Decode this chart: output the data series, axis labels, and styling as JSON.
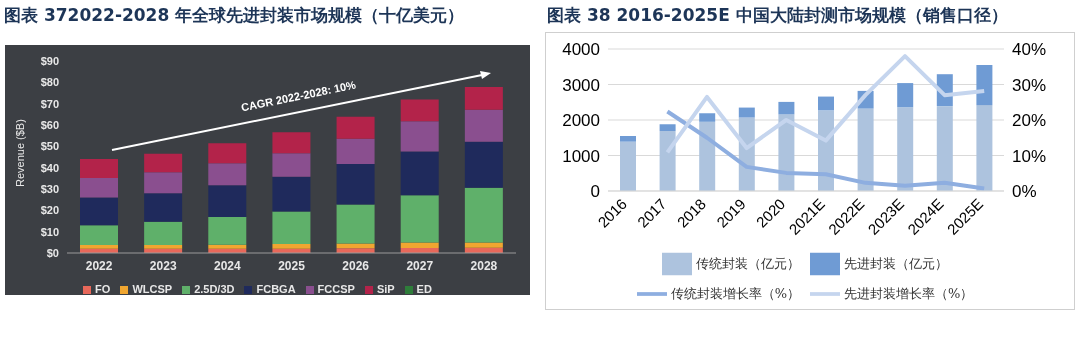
{
  "chart_data": [
    {
      "type": "bar",
      "title": "图表 372022-2028 年全球先进封装市场规模（十亿美元）",
      "ylabel": "Revenue ($B)",
      "categories": [
        "2022",
        "2023",
        "2024",
        "2025",
        "2026",
        "2027",
        "2028"
      ],
      "stacked": true,
      "legend": "bottom",
      "series": [
        {
          "name": "FO",
          "color": "#e8685a",
          "values": [
            2,
            2,
            2,
            2,
            2.2,
            2.4,
            2.5
          ]
        },
        {
          "name": "WLCSP",
          "color": "#f0a630",
          "values": [
            1.7,
            1.7,
            1.9,
            2.2,
            2.3,
            2.5,
            2.4
          ]
        },
        {
          "name": "2.5D/3D",
          "color": "#5fb06a",
          "values": [
            9.3,
            10.9,
            13,
            15.2,
            18.2,
            22.2,
            25.7
          ]
        },
        {
          "name": "FCBGA",
          "color": "#1f2a5c",
          "values": [
            13,
            13.4,
            14.9,
            16.4,
            19,
            20.5,
            21.6
          ]
        },
        {
          "name": "FCCSP",
          "color": "#8a4f8f",
          "values": [
            9.2,
            9.8,
            10.3,
            10.9,
            11.9,
            14.2,
            14.9
          ]
        },
        {
          "name": "SiP",
          "color": "#b3234a",
          "values": [
            8.9,
            8.7,
            9.4,
            9.9,
            10.3,
            10.2,
            10.7
          ]
        },
        {
          "name": "ED",
          "color": "#2e7d3a",
          "values": [
            0,
            0,
            0,
            0,
            0,
            0,
            0
          ]
        }
      ],
      "ylim": [
        0,
        90
      ],
      "yticks": [
        {
          "value": 0,
          "label": "$0"
        },
        {
          "value": 10,
          "label": "$10"
        },
        {
          "value": 20,
          "label": "$20"
        },
        {
          "value": 30,
          "label": "$30"
        },
        {
          "value": 40,
          "label": "$40"
        },
        {
          "value": 50,
          "label": "$50"
        },
        {
          "value": 60,
          "label": "$60"
        },
        {
          "value": 70,
          "label": "$70"
        },
        {
          "value": 80,
          "label": "$80"
        },
        {
          "value": 90,
          "label": "$90"
        }
      ],
      "annotations": [
        "CAGR 2022-2028: 10%"
      ]
    },
    {
      "type": "bar",
      "title": "图表 38 2016-2025E 中国大陆封测市场规模（销售口径）",
      "categories": [
        "2016",
        "2017",
        "2018",
        "2019",
        "2020",
        "2021E",
        "2022E",
        "2023E",
        "2024E",
        "2025E"
      ],
      "stacked": true,
      "legend": "bottom",
      "grid": "y",
      "marker": "none",
      "series": [
        {
          "name": "传统封装（亿元）",
          "color": "#adc3de",
          "values": [
            1390,
            1690,
            1950,
            2070,
            2160,
            2270,
            2320,
            2360,
            2390,
            2420
          ]
        },
        {
          "name": "先进封装（亿元）",
          "color": "#6f9bd4",
          "values": [
            160,
            190,
            240,
            280,
            350,
            390,
            500,
            680,
            900,
            1130
          ]
        },
        {
          "name": "传统封装增长率（%）",
          "type": "line",
          "axis": "y2",
          "color": "#8eaee0",
          "values": [
            null,
            22.4,
            15,
            6.8,
            5.1,
            4.7,
            2.3,
            1.5,
            2.3,
            0.7
          ]
        },
        {
          "name": "先进封装增长率（%）",
          "type": "line",
          "axis": "y2",
          "color": "#c5d5ee",
          "values": [
            null,
            10.9,
            26.5,
            12.1,
            20,
            14.2,
            27,
            38,
            27,
            28.2
          ]
        }
      ],
      "ylim": [
        0,
        4000
      ],
      "yticks": [
        0,
        1000,
        2000,
        3000,
        4000
      ],
      "y2lim": [
        0,
        40
      ],
      "y2ticks": [
        {
          "value": 0,
          "label": "0%"
        },
        {
          "value": 10,
          "label": "10%"
        },
        {
          "value": 20,
          "label": "20%"
        },
        {
          "value": 30,
          "label": "30%"
        },
        {
          "value": 40,
          "label": "40%"
        }
      ]
    }
  ]
}
